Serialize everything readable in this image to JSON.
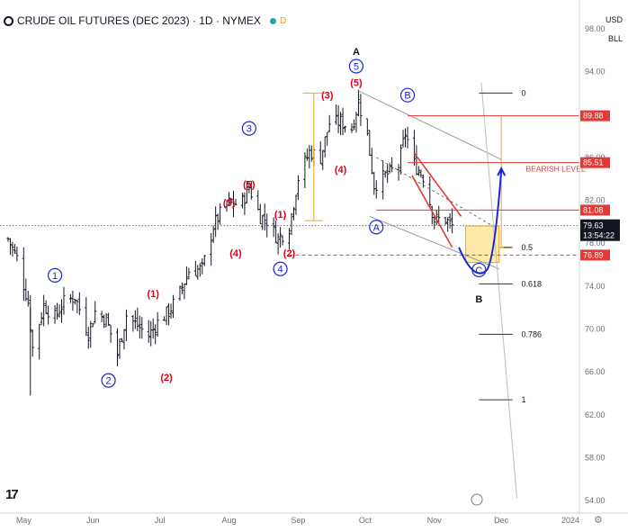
{
  "header": {
    "title": "CRUDE OIL FUTURES (DEC 2023) · 1D · NYMEX",
    "flag": "D"
  },
  "currency": {
    "unit": "USD",
    "units_label": "BLL"
  },
  "colors": {
    "up_down_bars": "#131722",
    "wave_red": "#e0001a",
    "wave_blue": "#1726d6",
    "level_red": "#e53935",
    "fib_orange": "#f5a524",
    "channel_gray": "#9a9a9a",
    "target_zone": "#fde9a8"
  },
  "price_labels": [
    {
      "text": "89.88",
      "price": 89.88,
      "color": "#e53935"
    },
    {
      "text": "85.51",
      "price": 85.51,
      "color": "#e53935"
    },
    {
      "text": "81.08",
      "price": 81.08,
      "color": "#e53935"
    },
    {
      "text": "76.89",
      "price": 76.89,
      "color": "#e53935"
    }
  ],
  "last_price": {
    "price": "79.63",
    "countdown": "13:54:22",
    "value": 79.63
  },
  "annotations": {
    "bearish_level": "BEARISH LEVEL",
    "fib_levels": [
      {
        "label": "0",
        "price": 92.0
      },
      {
        "label": "0.5",
        "price": 77.6
      },
      {
        "label": "0.618",
        "price": 74.2
      },
      {
        "label": "0.786",
        "price": 69.5
      },
      {
        "label": "1",
        "price": 63.4
      }
    ],
    "wave_labels": [
      {
        "text": "1",
        "circled": true,
        "color": "blue",
        "date": "2023-05-15",
        "price": 75.0
      },
      {
        "text": "2",
        "circled": true,
        "color": "blue",
        "date": "2023-06-08",
        "price": 65.2
      },
      {
        "text": "(1)",
        "circled": false,
        "color": "red",
        "date": "2023-06-28",
        "price": 73.3
      },
      {
        "text": "(2)",
        "circled": false,
        "color": "red",
        "date": "2023-07-04",
        "price": 65.5
      },
      {
        "text": "3",
        "circled": true,
        "color": "blue",
        "date": "2023-08-10",
        "price": 88.7
      },
      {
        "text": "(3)",
        "circled": false,
        "color": "red",
        "date": "2023-08-01",
        "price": 81.8
      },
      {
        "text": "(4)",
        "circled": false,
        "color": "red",
        "date": "2023-08-04",
        "price": 77.1
      },
      {
        "text": "(5)",
        "circled": false,
        "color": "red",
        "date": "2023-08-10",
        "price": 83.5
      },
      {
        "text": "(1)",
        "circled": false,
        "color": "red",
        "date": "2023-08-24",
        "price": 80.7
      },
      {
        "text": "(2)",
        "circled": false,
        "color": "red",
        "date": "2023-08-28",
        "price": 77.1
      },
      {
        "text": "4",
        "circled": true,
        "color": "blue",
        "date": "2023-08-24",
        "price": 75.6
      },
      {
        "text": "(3)",
        "circled": false,
        "color": "red",
        "date": "2023-09-14",
        "price": 91.8
      },
      {
        "text": "(4)",
        "circled": false,
        "color": "red",
        "date": "2023-09-20",
        "price": 84.9
      },
      {
        "text": "5",
        "circled": true,
        "color": "blue",
        "date": "2023-09-27",
        "price": 94.5
      },
      {
        "text": "(5)",
        "circled": false,
        "color": "red",
        "date": "2023-09-27",
        "price": 93.0
      },
      {
        "text": "A",
        "circled": false,
        "color": "black",
        "date": "2023-09-27",
        "price": 95.9
      },
      {
        "text": "A",
        "circled": true,
        "color": "blue",
        "date": "2023-10-06",
        "price": 79.5
      },
      {
        "text": "B",
        "circled": true,
        "color": "blue",
        "date": "2023-10-20",
        "price": 91.8
      },
      {
        "text": "C",
        "circled": true,
        "color": "blue",
        "date": "2023-11-21",
        "price": 75.5
      },
      {
        "text": "B",
        "circled": false,
        "color": "black",
        "date": "2023-11-21",
        "price": 72.8
      }
    ]
  },
  "chart_data": {
    "type": "candlestick-bars",
    "title": "CRUDE OIL FUTURES (DEC 2023) · 1D · NYMEX",
    "xlabel": "",
    "ylabel": "",
    "ylim": [
      53.0,
      100.0
    ],
    "y_ticks": [
      "54.00",
      "58.00",
      "62.00",
      "66.00",
      "70.00",
      "74.00",
      "78.00",
      "82.00",
      "86.00",
      "90.00",
      "94.00",
      "98.00"
    ],
    "x_ticks": [
      "May",
      "Jun",
      "Jul",
      "Aug",
      "Sep",
      "Oct",
      "Nov",
      "Dec",
      "2024"
    ],
    "series": [
      {
        "name": "",
        "values": [
          [
            "2023-04-24",
            78.4
          ],
          [
            "2023-04-28",
            76.6
          ],
          [
            "2023-05-03",
            72.5
          ],
          [
            "2023-05-05",
            68.2
          ],
          [
            "2023-05-10",
            72.2
          ],
          [
            "2023-05-15",
            71.1
          ],
          [
            "2023-05-19",
            72.5
          ],
          [
            "2023-05-24",
            73.0
          ],
          [
            "2023-05-30",
            69.6
          ],
          [
            "2023-06-02",
            71.6
          ],
          [
            "2023-06-07",
            70.9
          ],
          [
            "2023-06-12",
            67.6
          ],
          [
            "2023-06-16",
            71.3
          ],
          [
            "2023-06-21",
            70.3
          ],
          [
            "2023-06-26",
            69.4
          ],
          [
            "2023-06-30",
            70.6
          ],
          [
            "2023-07-05",
            71.6
          ],
          [
            "2023-07-10",
            73.4
          ],
          [
            "2023-07-14",
            75.4
          ],
          [
            "2023-07-20",
            75.6
          ],
          [
            "2023-07-25",
            79.6
          ],
          [
            "2023-07-31",
            81.8
          ],
          [
            "2023-08-03",
            81.6
          ],
          [
            "2023-08-07",
            81.9
          ],
          [
            "2023-08-10",
            83.2
          ],
          [
            "2023-08-15",
            80.5
          ],
          [
            "2023-08-18",
            80.1
          ],
          [
            "2023-08-23",
            78.4
          ],
          [
            "2023-08-28",
            79.5
          ],
          [
            "2023-09-01",
            84.1
          ],
          [
            "2023-09-06",
            86.5
          ],
          [
            "2023-09-11",
            86.0
          ],
          [
            "2023-09-15",
            89.2
          ],
          [
            "2023-09-20",
            89.3
          ],
          [
            "2023-09-25",
            88.7
          ],
          [
            "2023-09-28",
            91.2
          ],
          [
            "2023-10-02",
            88.0
          ],
          [
            "2023-10-05",
            83.4
          ],
          [
            "2023-10-10",
            84.3
          ],
          [
            "2023-10-16",
            85.2
          ],
          [
            "2023-10-19",
            88.3
          ],
          [
            "2023-10-23",
            85.4
          ],
          [
            "2023-10-27",
            84.2
          ],
          [
            "2023-11-01",
            80.2
          ],
          [
            "2023-11-06",
            80.2
          ],
          [
            "2023-11-09",
            79.6
          ]
        ]
      }
    ]
  }
}
